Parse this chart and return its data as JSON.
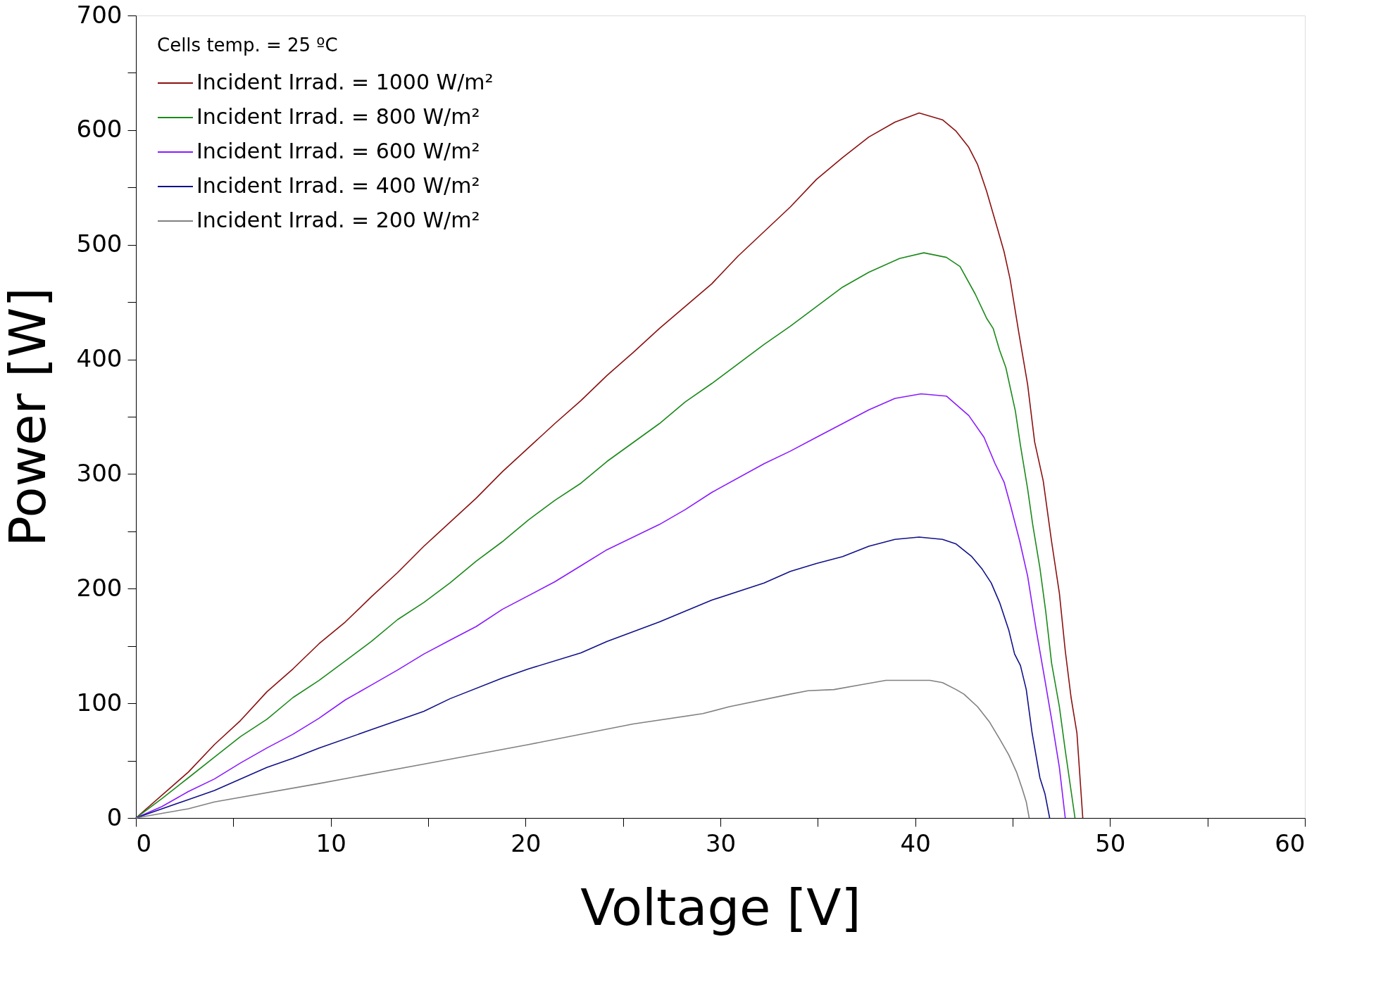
{
  "chart_data": {
    "type": "line",
    "xlabel": "Voltage [V]",
    "ylabel": "Power [W]",
    "legend_title": "Cells temp. = 25 ºC",
    "legend": "top left",
    "grid": false,
    "marker": "none",
    "line_style": "solid",
    "xlim": [
      0,
      60
    ],
    "ylim": [
      0,
      700
    ],
    "xticks": [
      0,
      {
        "value": 5,
        "label": null
      },
      10,
      {
        "value": 15,
        "label": null
      },
      20,
      {
        "value": 25,
        "label": null
      },
      30,
      {
        "value": 35,
        "label": null
      },
      40,
      {
        "value": 45,
        "label": null
      },
      50,
      {
        "value": 55,
        "label": null
      },
      60
    ],
    "yticks": [
      0,
      {
        "value": 50,
        "label": null
      },
      100,
      {
        "value": 150,
        "label": null
      },
      200,
      {
        "value": 250,
        "label": null
      },
      300,
      {
        "value": 350,
        "label": null
      },
      400,
      {
        "value": 450,
        "label": null
      },
      500,
      {
        "value": 550,
        "label": null
      },
      600,
      {
        "value": 650,
        "label": null
      },
      700
    ],
    "series": [
      {
        "name": "Incident Irrad. = 1000 W/m²",
        "color": "#8b1010",
        "x": [
          0,
          2.69,
          4.03,
          5.37,
          6.72,
          8.06,
          9.4,
          10.75,
          12.09,
          13.43,
          14.78,
          17.47,
          18.81,
          21.5,
          22.84,
          24.18,
          25.52,
          26.87,
          29.56,
          30.9,
          33.59,
          34.93,
          36.27,
          37.62,
          38.96,
          40.2,
          41.4,
          42.1,
          42.75,
          43.2,
          43.66,
          44.24,
          44.56,
          44.87,
          45.32,
          45.77,
          46.13,
          46.57,
          47.0,
          47.4,
          47.7,
          48.0,
          48.3,
          48.6
        ],
        "values": [
          0,
          40,
          64,
          85,
          110,
          130,
          152,
          171,
          193,
          214,
          237,
          279,
          302,
          344,
          364,
          386,
          406,
          427,
          466,
          490,
          533,
          557,
          576,
          594,
          607,
          615,
          609,
          599,
          585,
          570,
          547,
          513,
          494,
          470,
          423,
          378,
          328,
          294,
          241,
          196,
          146,
          105,
          74,
          0
        ]
      },
      {
        "name": "Incident Irrad. = 800 W/m²",
        "color": "#1a8a1a",
        "x": [
          0,
          1.34,
          2.69,
          4.03,
          5.37,
          6.72,
          8.06,
          9.4,
          10.75,
          12.09,
          13.43,
          14.78,
          16.12,
          17.47,
          18.81,
          20.15,
          21.5,
          22.84,
          24.18,
          26.87,
          28.2,
          29.56,
          32.24,
          33.59,
          34.93,
          36.27,
          37.62,
          39.19,
          40.44,
          41.6,
          42.3,
          43.08,
          43.66,
          44.0,
          44.33,
          44.65,
          45.14,
          45.4,
          45.77,
          46.03,
          46.4,
          46.7,
          47.0,
          47.4,
          47.7,
          48.2
        ],
        "values": [
          0,
          17,
          35,
          53,
          71,
          86,
          105,
          120,
          137,
          154,
          173,
          188,
          205,
          224,
          241,
          260,
          277,
          292,
          311,
          344,
          363,
          379,
          413,
          429,
          446,
          463,
          476,
          488,
          493,
          489,
          481,
          457,
          436,
          427,
          408,
          393,
          355,
          325,
          287,
          256,
          218,
          180,
          135,
          97,
          59,
          0
        ]
      },
      {
        "name": "Incident Irrad. = 600 W/m²",
        "color": "#8a1aff",
        "x": [
          0,
          1.34,
          2.69,
          4.03,
          5.37,
          6.72,
          8.06,
          9.4,
          10.75,
          12.09,
          13.43,
          14.78,
          16.12,
          17.47,
          18.81,
          21.5,
          22.84,
          24.18,
          26.87,
          28.2,
          29.56,
          32.24,
          33.59,
          34.93,
          37.62,
          38.96,
          40.3,
          41.6,
          42.75,
          43.53,
          44.1,
          44.56,
          44.9,
          45.37,
          45.77,
          46.2,
          46.66,
          47.0,
          47.4,
          47.7
        ],
        "values": [
          0,
          10,
          23,
          34,
          48,
          61,
          73,
          87,
          103,
          116,
          129,
          143,
          155,
          167,
          182,
          206,
          220,
          234,
          256,
          269,
          284,
          309,
          320,
          332,
          356,
          366,
          370,
          368,
          351,
          332,
          309,
          293,
          272,
          241,
          211,
          165,
          120,
          86,
          44,
          0
        ]
      },
      {
        "name": "Incident Irrad. = 400 W/m²",
        "color": "#10108a",
        "x": [
          0,
          2.69,
          4.03,
          6.72,
          8.06,
          9.4,
          12.09,
          14.78,
          16.12,
          18.81,
          20.15,
          22.84,
          24.18,
          26.87,
          29.56,
          32.24,
          33.59,
          34.93,
          36.27,
          37.62,
          38.96,
          40.2,
          41.4,
          42.1,
          42.9,
          43.44,
          43.9,
          44.33,
          44.8,
          45.1,
          45.4,
          45.7,
          46.0,
          46.4,
          46.66,
          46.9
        ],
        "values": [
          0,
          16,
          24,
          44,
          52,
          61,
          77,
          93,
          104,
          122,
          130,
          144,
          154,
          171,
          190,
          205,
          215,
          222,
          228,
          237,
          243,
          245,
          243,
          239,
          228,
          217,
          205,
          188,
          164,
          143,
          133,
          112,
          74,
          35,
          21,
          0
        ]
      },
      {
        "name": "Incident Irrad. = 200 W/m²",
        "color": "#808080",
        "x": [
          0,
          1.34,
          2.69,
          4.03,
          9.4,
          14.78,
          20.15,
          25.52,
          29.1,
          30.45,
          33.59,
          34.5,
          35.83,
          37.17,
          38.5,
          40.75,
          41.4,
          42.1,
          42.5,
          43.2,
          43.8,
          44.33,
          44.8,
          45.2,
          45.5,
          45.7,
          45.85
        ],
        "values": [
          0,
          4,
          8,
          14,
          30,
          47,
          64,
          82,
          91,
          97,
          108,
          111,
          112,
          116,
          120,
          120,
          118,
          112,
          108,
          97,
          84,
          69,
          55,
          40,
          25,
          14,
          0
        ]
      }
    ]
  }
}
